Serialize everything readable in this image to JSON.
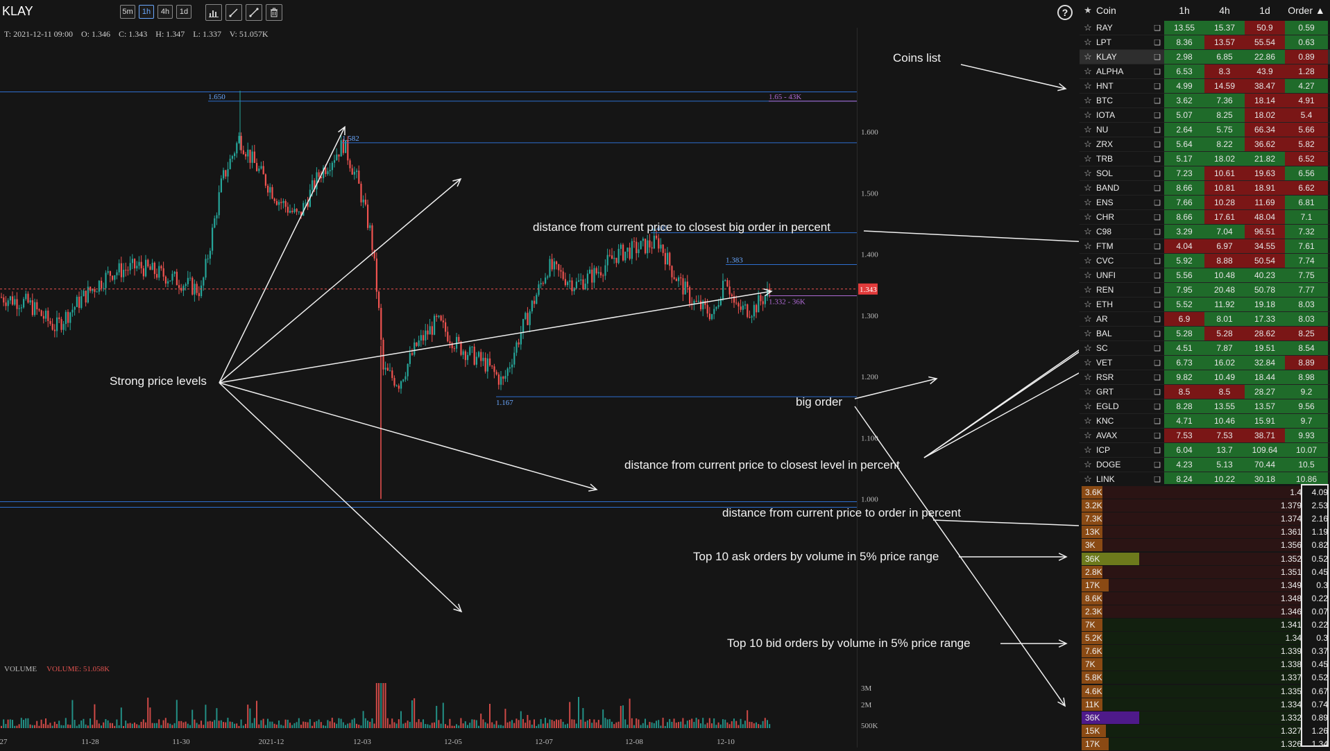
{
  "header": {
    "symbol": "KLAY",
    "timeframes": [
      "5m",
      "1h",
      "4h",
      "1d"
    ],
    "active_timeframe": "1h",
    "tools": [
      "chart-type-icon",
      "trendline-icon",
      "ray-icon",
      "trash-icon"
    ],
    "ohlc": "T: 2021-12-11 09:00    O: 1.346    C: 1.343    H: 1.347    L: 1.337    V: 51.057K",
    "help": "?"
  },
  "chart": {
    "y_labels": [
      "1.600",
      "1.500",
      "1.400",
      "1.300",
      "1.200",
      "1.100",
      "1.000"
    ],
    "x_labels": [
      "27",
      "11-28",
      "11-30",
      "2021-12",
      "12-03",
      "12-05",
      "12-07",
      "12-08",
      "12-10"
    ],
    "current_price": "1.343",
    "levels": [
      {
        "label": "1.650",
        "value": 1.65
      },
      {
        "label": "1.582",
        "value": 1.582
      },
      {
        "label": "1.435",
        "value": 1.435
      },
      {
        "label": "1.383",
        "value": 1.383
      },
      {
        "label": "1.167",
        "value": 1.167
      }
    ],
    "big_orders": [
      {
        "label": "1.65 - 43K",
        "value": 1.65
      },
      {
        "label": "1.332 - 36K",
        "value": 1.332
      }
    ],
    "volume_label": "VOLUME",
    "volume_value": "VOLUME: 51.058K",
    "volume_axis": [
      "3M",
      "2M",
      "500K"
    ]
  },
  "annotations": {
    "coins_list": "Coins list",
    "distance_big_order": "distance from current price to closest big order in percent",
    "strong_levels": "Strong price levels",
    "big_order": "big order",
    "distance_level": "distance from current price to closest level in percent",
    "distance_order": "distance from current price to order in percent",
    "top_ask": "Top 10 ask orders by volume in 5% price range",
    "top_bid": "Top 10 bid orders by volume in 5% price range"
  },
  "coins": {
    "headers": {
      "star": "★",
      "coin": "Coin",
      "h1": "1h",
      "h4": "4h",
      "d1": "1d",
      "order": "Order ▲"
    },
    "rows": [
      {
        "name": "RAY",
        "h1": "13.55",
        "h4": "15.37",
        "d1": "50.9",
        "order": "0.59",
        "c": [
          "g",
          "g",
          "r",
          "g"
        ]
      },
      {
        "name": "LPT",
        "h1": "8.36",
        "h4": "13.57",
        "d1": "55.54",
        "order": "0.63",
        "c": [
          "g",
          "r",
          "r",
          "g"
        ]
      },
      {
        "name": "KLAY",
        "h1": "2.98",
        "h4": "6.85",
        "d1": "22.86",
        "order": "0.89",
        "c": [
          "g",
          "g",
          "g",
          "r"
        ],
        "selected": true
      },
      {
        "name": "ALPHA",
        "h1": "6.53",
        "h4": "8.3",
        "d1": "43.9",
        "order": "1.28",
        "c": [
          "g",
          "r",
          "r",
          "r"
        ]
      },
      {
        "name": "HNT",
        "h1": "4.99",
        "h4": "14.59",
        "d1": "38.47",
        "order": "4.27",
        "c": [
          "g",
          "r",
          "r",
          "g"
        ]
      },
      {
        "name": "BTC",
        "h1": "3.62",
        "h4": "7.36",
        "d1": "18.14",
        "order": "4.91",
        "c": [
          "g",
          "g",
          "r",
          "r"
        ]
      },
      {
        "name": "IOTA",
        "h1": "5.07",
        "h4": "8.25",
        "d1": "18.02",
        "order": "5.4",
        "c": [
          "g",
          "g",
          "r",
          "r"
        ]
      },
      {
        "name": "NU",
        "h1": "2.64",
        "h4": "5.75",
        "d1": "66.34",
        "order": "5.66",
        "c": [
          "g",
          "g",
          "r",
          "r"
        ]
      },
      {
        "name": "ZRX",
        "h1": "5.64",
        "h4": "8.22",
        "d1": "36.62",
        "order": "5.82",
        "c": [
          "g",
          "g",
          "r",
          "r"
        ]
      },
      {
        "name": "TRB",
        "h1": "5.17",
        "h4": "18.02",
        "d1": "21.82",
        "order": "6.52",
        "c": [
          "g",
          "g",
          "g",
          "r"
        ]
      },
      {
        "name": "SOL",
        "h1": "7.23",
        "h4": "10.61",
        "d1": "19.63",
        "order": "6.56",
        "c": [
          "g",
          "r",
          "r",
          "g"
        ]
      },
      {
        "name": "BAND",
        "h1": "8.66",
        "h4": "10.81",
        "d1": "18.91",
        "order": "6.62",
        "c": [
          "g",
          "r",
          "r",
          "r"
        ]
      },
      {
        "name": "ENS",
        "h1": "7.66",
        "h4": "10.28",
        "d1": "11.69",
        "order": "6.81",
        "c": [
          "g",
          "r",
          "r",
          "g"
        ]
      },
      {
        "name": "CHR",
        "h1": "8.66",
        "h4": "17.61",
        "d1": "48.04",
        "order": "7.1",
        "c": [
          "g",
          "r",
          "r",
          "g"
        ]
      },
      {
        "name": "C98",
        "h1": "3.29",
        "h4": "7.04",
        "d1": "96.51",
        "order": "7.32",
        "c": [
          "g",
          "g",
          "r",
          "g"
        ]
      },
      {
        "name": "FTM",
        "h1": "4.04",
        "h4": "6.97",
        "d1": "34.55",
        "order": "7.61",
        "c": [
          "r",
          "r",
          "r",
          "g"
        ]
      },
      {
        "name": "CVC",
        "h1": "5.92",
        "h4": "8.88",
        "d1": "50.54",
        "order": "7.74",
        "c": [
          "g",
          "r",
          "r",
          "g"
        ]
      },
      {
        "name": "UNFI",
        "h1": "5.56",
        "h4": "10.48",
        "d1": "40.23",
        "order": "7.75",
        "c": [
          "g",
          "g",
          "g",
          "g"
        ]
      },
      {
        "name": "REN",
        "h1": "7.95",
        "h4": "20.48",
        "d1": "50.78",
        "order": "7.77",
        "c": [
          "g",
          "g",
          "g",
          "g"
        ]
      },
      {
        "name": "ETH",
        "h1": "5.52",
        "h4": "11.92",
        "d1": "19.18",
        "order": "8.03",
        "c": [
          "g",
          "g",
          "g",
          "g"
        ]
      },
      {
        "name": "AR",
        "h1": "6.9",
        "h4": "8.01",
        "d1": "17.33",
        "order": "8.03",
        "c": [
          "r",
          "g",
          "g",
          "g"
        ]
      },
      {
        "name": "BAL",
        "h1": "5.28",
        "h4": "5.28",
        "d1": "28.62",
        "order": "8.25",
        "c": [
          "g",
          "r",
          "r",
          "r"
        ]
      },
      {
        "name": "SC",
        "h1": "4.51",
        "h4": "7.87",
        "d1": "19.51",
        "order": "8.54",
        "c": [
          "g",
          "g",
          "g",
          "g"
        ]
      },
      {
        "name": "VET",
        "h1": "6.73",
        "h4": "16.02",
        "d1": "32.84",
        "order": "8.89",
        "c": [
          "g",
          "g",
          "g",
          "r"
        ]
      },
      {
        "name": "RSR",
        "h1": "9.82",
        "h4": "10.49",
        "d1": "18.44",
        "order": "8.98",
        "c": [
          "g",
          "g",
          "g",
          "g"
        ]
      },
      {
        "name": "GRT",
        "h1": "8.5",
        "h4": "8.5",
        "d1": "28.27",
        "order": "9.2",
        "c": [
          "r",
          "r",
          "g",
          "g"
        ]
      },
      {
        "name": "EGLD",
        "h1": "8.28",
        "h4": "13.55",
        "d1": "13.57",
        "order": "9.56",
        "c": [
          "g",
          "g",
          "g",
          "g"
        ]
      },
      {
        "name": "KNC",
        "h1": "4.71",
        "h4": "10.46",
        "d1": "15.91",
        "order": "9.7",
        "c": [
          "g",
          "g",
          "g",
          "g"
        ]
      },
      {
        "name": "AVAX",
        "h1": "7.53",
        "h4": "7.53",
        "d1": "38.71",
        "order": "9.93",
        "c": [
          "r",
          "r",
          "r",
          "g"
        ]
      },
      {
        "name": "ICP",
        "h1": "6.04",
        "h4": "13.7",
        "d1": "109.64",
        "order": "10.07",
        "c": [
          "g",
          "g",
          "g",
          "g"
        ]
      },
      {
        "name": "DOGE",
        "h1": "4.23",
        "h4": "5.13",
        "d1": "70.44",
        "order": "10.5",
        "c": [
          "g",
          "g",
          "g",
          "g"
        ]
      },
      {
        "name": "LINK",
        "h1": "8.24",
        "h4": "10.22",
        "d1": "30.18",
        "order": "10.86",
        "c": [
          "g",
          "g",
          "g",
          "g"
        ]
      }
    ]
  },
  "book": {
    "asks": [
      {
        "vol": "3.6K",
        "price": "1.4",
        "pct": "4.09",
        "fill": 0.1,
        "color": "#8a4a14"
      },
      {
        "vol": "3.2K",
        "price": "1.379",
        "pct": "2.53",
        "fill": 0.09,
        "color": "#8a4a14"
      },
      {
        "vol": "7.3K",
        "price": "1.374",
        "pct": "2.16",
        "fill": 0.2,
        "color": "#8a4a14"
      },
      {
        "vol": "13K",
        "price": "1.361",
        "pct": "1.19",
        "fill": 0.36,
        "color": "#8a4a14"
      },
      {
        "vol": "3K",
        "price": "1.356",
        "pct": "0.82",
        "fill": 0.08,
        "color": "#8a4a14"
      },
      {
        "vol": "36K",
        "price": "1.352",
        "pct": "0.52",
        "fill": 1.0,
        "color": "#6d7a1c"
      },
      {
        "vol": "2.8K",
        "price": "1.351",
        "pct": "0.45",
        "fill": 0.08,
        "color": "#8a4a14"
      },
      {
        "vol": "17K",
        "price": "1.349",
        "pct": "0.3",
        "fill": 0.47,
        "color": "#8a4a14"
      },
      {
        "vol": "8.6K",
        "price": "1.348",
        "pct": "0.22",
        "fill": 0.24,
        "color": "#8a4a14"
      },
      {
        "vol": "2.3K",
        "price": "1.346",
        "pct": "0.07",
        "fill": 0.07,
        "color": "#8a4a14"
      }
    ],
    "bids": [
      {
        "vol": "7K",
        "price": "1.341",
        "pct": "0.22",
        "fill": 0.19,
        "color": "#8a4a14"
      },
      {
        "vol": "5.2K",
        "price": "1.34",
        "pct": "0.3",
        "fill": 0.14,
        "color": "#8a4a14"
      },
      {
        "vol": "7.6K",
        "price": "1.339",
        "pct": "0.37",
        "fill": 0.21,
        "color": "#8a4a14"
      },
      {
        "vol": "7K",
        "price": "1.338",
        "pct": "0.45",
        "fill": 0.19,
        "color": "#8a4a14"
      },
      {
        "vol": "5.8K",
        "price": "1.337",
        "pct": "0.52",
        "fill": 0.16,
        "color": "#8a4a14"
      },
      {
        "vol": "4.6K",
        "price": "1.335",
        "pct": "0.67",
        "fill": 0.13,
        "color": "#8a4a14"
      },
      {
        "vol": "11K",
        "price": "1.334",
        "pct": "0.74",
        "fill": 0.3,
        "color": "#8a4a14"
      },
      {
        "vol": "36K",
        "price": "1.332",
        "pct": "0.89",
        "fill": 1.0,
        "color": "#4e1a8a"
      },
      {
        "vol": "15K",
        "price": "1.327",
        "pct": "1.26",
        "fill": 0.42,
        "color": "#8a4a14"
      },
      {
        "vol": "17K",
        "price": "1.326",
        "pct": "1.34",
        "fill": 0.47,
        "color": "#8a4a14"
      }
    ]
  },
  "colors": {
    "up": "#26a69a",
    "down": "#ef5350",
    "level": "#2e6fd1",
    "big_order": "#b06bd6",
    "cell_green": "#1f6b2a",
    "cell_red": "#7a1616",
    "ask_bg": "#2b1414",
    "bid_bg": "#12200f"
  }
}
